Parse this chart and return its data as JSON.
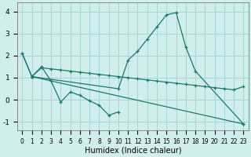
{
  "xlabel": "Humidex (Indice chaleur)",
  "bg_color": "#d0eeec",
  "grid_color": "#a8d8d4",
  "line_color": "#1a7a6e",
  "xlim": [
    -0.5,
    23.5
  ],
  "ylim": [
    -1.4,
    4.4
  ],
  "xticks": [
    0,
    1,
    2,
    3,
    4,
    5,
    6,
    7,
    8,
    9,
    10,
    11,
    12,
    13,
    14,
    15,
    16,
    17,
    18,
    19,
    20,
    21,
    22,
    23
  ],
  "yticks": [
    -1,
    0,
    1,
    2,
    3,
    4
  ],
  "series1_x": [
    0,
    1,
    10,
    11,
    12,
    13,
    14,
    15,
    16,
    17,
    18,
    23
  ],
  "series1_y": [
    2.1,
    1.05,
    0.5,
    1.8,
    2.2,
    2.75,
    3.3,
    3.85,
    3.95,
    2.4,
    1.3,
    -1.1
  ],
  "series2_x": [
    1,
    2,
    3,
    4,
    5,
    6,
    7,
    8,
    9,
    10
  ],
  "series2_y": [
    1.05,
    1.5,
    0.85,
    -0.1,
    0.35,
    0.2,
    -0.05,
    -0.25,
    -0.7,
    -0.55
  ],
  "series3_x": [
    0,
    1,
    23
  ],
  "series3_y": [
    2.1,
    1.05,
    -1.1
  ],
  "series4_x": [
    1,
    2,
    3,
    4,
    5,
    6,
    7,
    8,
    9,
    10,
    11,
    12,
    13,
    14,
    15,
    16,
    17,
    18,
    19,
    20,
    21,
    22,
    23
  ],
  "series4_y": [
    1.05,
    1.45,
    1.4,
    1.35,
    1.3,
    1.25,
    1.2,
    1.15,
    1.1,
    1.05,
    1.0,
    0.95,
    0.9,
    0.85,
    0.8,
    0.75,
    0.7,
    0.65,
    0.6,
    0.55,
    0.5,
    0.45,
    0.6
  ],
  "xtick_fontsize": 5.5,
  "ytick_fontsize": 6.5,
  "xlabel_fontsize": 7
}
